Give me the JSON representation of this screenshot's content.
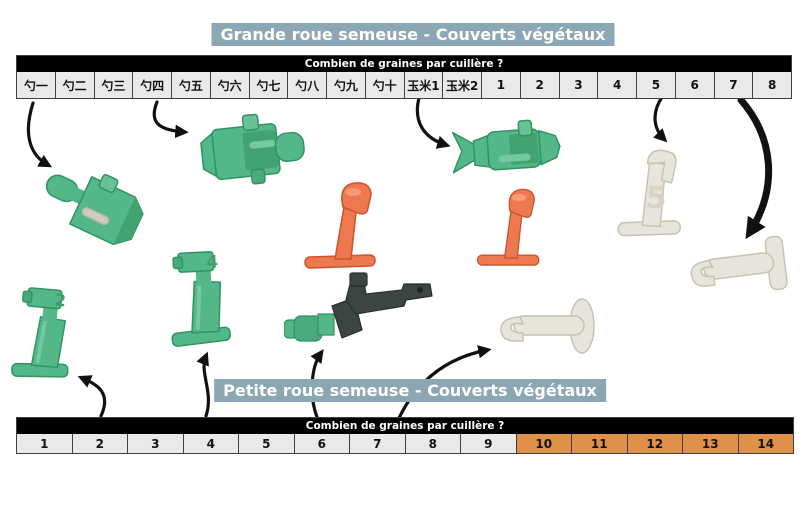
{
  "colors": {
    "title_bg": "#8ba7b3",
    "title_text": "#ffffff",
    "bar_bg": "#000000",
    "bar_text": "#ffffff",
    "cell_bg": "#e9e9e9",
    "cell_border": "#3f3f3f",
    "cell_text": "#111111",
    "highlight_cell_bg": "#df9049",
    "part_green": "#53b787",
    "part_orange": "#ee7950",
    "part_white": "#e7e4db",
    "part_dark": "#3d4543",
    "arrow": "#111111"
  },
  "top": {
    "title": "Grande roue semeuse - Couverts végétaux",
    "table": {
      "header": "Combien de graines par cuillère ?",
      "columns": [
        "勺一",
        "勺二",
        "勺三",
        "勺四",
        "勺五",
        "勺六",
        "勺七",
        "勺八",
        "勺九",
        "勺十",
        "玉米1",
        "玉米2",
        "1",
        "2",
        "3",
        "4",
        "5",
        "6",
        "7",
        "8"
      ]
    }
  },
  "bottom": {
    "title": "Petite roue semeuse - Couverts végétaux",
    "table": {
      "header": "Combien de graines par cuillère ?",
      "columns": [
        "1",
        "2",
        "3",
        "4",
        "5",
        "6",
        "7",
        "8",
        "9",
        "10",
        "11",
        "12",
        "13",
        "14"
      ],
      "highlighted": [
        "10",
        "11",
        "12",
        "13",
        "14"
      ]
    }
  },
  "parts": {
    "green_cartridge_large": {
      "icon": "green-seed-cartridge-icon",
      "label": ""
    },
    "green_cartridge_tilted": {
      "icon": "green-seed-cartridge-icon",
      "label": ""
    },
    "green_corn_cartridge": {
      "icon": "green-corn-cartridge-icon",
      "label": ""
    },
    "orange_spoon_left": {
      "icon": "orange-seed-spoon-icon",
      "label": ""
    },
    "orange_spoon_right": {
      "icon": "orange-seed-spoon-icon",
      "label": ""
    },
    "white_spoon_5": {
      "icon": "white-seed-spoon-icon",
      "label": "5"
    },
    "white_spoon_lying": {
      "icon": "white-seed-spoon-icon",
      "label": ""
    },
    "dark_spoon_green_tip": {
      "icon": "dark-seed-spoon-icon",
      "label": ""
    },
    "white_spoon_hook": {
      "icon": "white-seed-spoon-icon",
      "label": ""
    },
    "green_spoon_2": {
      "icon": "green-seed-spoon-icon",
      "label": "2"
    },
    "green_spoon_4": {
      "icon": "green-seed-spoon-icon",
      "label": "4"
    }
  }
}
